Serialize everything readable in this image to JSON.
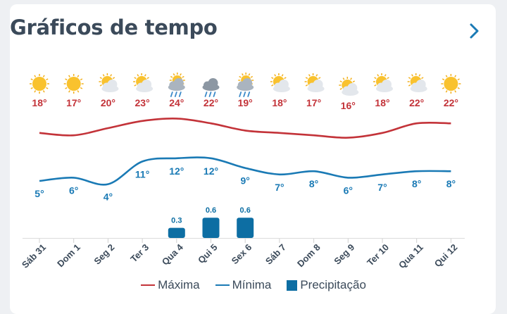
{
  "widget": {
    "title": "Gráficos de tempo",
    "next_icon": "chevron-right-icon"
  },
  "colors": {
    "max": "#c33339",
    "min": "#1a7ab5",
    "precip": "#0d6ea3",
    "title": "#3b4a5a"
  },
  "legend": {
    "max_label": "Máxima",
    "min_label": "Mínima",
    "precip_label": "Precipitação"
  },
  "chart_data": {
    "type": "line",
    "categories": [
      "Sáb 31",
      "Dom 1",
      "Seg 2",
      "Ter 3",
      "Qua 4",
      "Qui 5",
      "Sex 6",
      "Sáb 7",
      "Dom 8",
      "Seg 9",
      "Ter 10",
      "Qua 11",
      "Qui 12"
    ],
    "icons": [
      "sun-icon",
      "sun-icon",
      "partly-cloudy-icon",
      "partly-cloudy-icon",
      "rain-icon",
      "rain-icon",
      "rain-icon",
      "partly-cloudy-icon",
      "partly-cloudy-icon",
      "partly-cloudy-icon",
      "partly-cloudy-icon",
      "partly-cloudy-icon",
      "sun-icon"
    ],
    "series": [
      {
        "name": "Máxima",
        "values": [
          18,
          17,
          20,
          23,
          24,
          22,
          19,
          18,
          17,
          16,
          18,
          22,
          22
        ]
      },
      {
        "name": "Mínima",
        "values": [
          5,
          6,
          4,
          11,
          12,
          12,
          9,
          7,
          8,
          6,
          7,
          8,
          8
        ]
      }
    ],
    "max_labels": [
      "18°",
      "17°",
      "20°",
      "23°",
      "24°",
      "22°",
      "19°",
      "18°",
      "17°",
      "16°",
      "18°",
      "22°",
      "22°"
    ],
    "min_labels": [
      "5°",
      "6°",
      "4°",
      "11°",
      "12°",
      "12°",
      "9°",
      "7°",
      "8°",
      "6°",
      "7°",
      "8°",
      "8°"
    ],
    "precipitation": [
      0,
      0,
      0,
      0,
      0.3,
      0.6,
      0.6,
      0,
      0,
      0,
      0,
      0,
      0
    ],
    "precip_labels": [
      "",
      "",
      "",
      "",
      "0.3",
      "0.6",
      "0.6",
      "",
      "",
      "",
      "",
      "",
      ""
    ]
  }
}
